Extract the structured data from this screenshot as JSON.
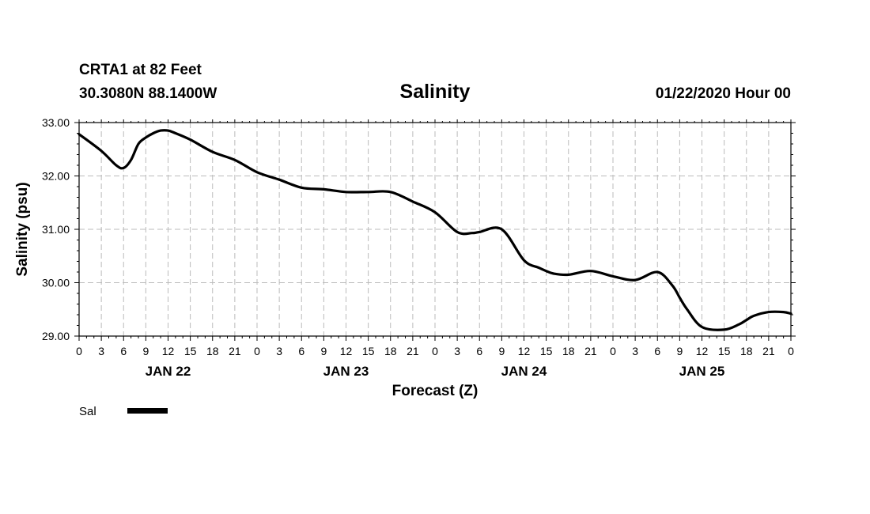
{
  "header": {
    "station": "CRTA1 at 82 Feet",
    "coords": "30.3080N 88.1400W",
    "title": "Salinity",
    "run": "01/22/2020 Hour 00"
  },
  "legend": {
    "label": "Sal"
  },
  "colors": {
    "line": "#000000",
    "grid": "#bbbbbb",
    "axis": "#000000"
  },
  "chart_data": {
    "type": "line",
    "title": "Salinity",
    "xlabel": "Forecast (Z)",
    "ylabel": "Salinity (psu)",
    "xlim": [
      0,
      96
    ],
    "ylim": [
      29,
      33
    ],
    "grid": true,
    "legend_position": "bottom-left",
    "y_ticks": [
      29,
      30,
      31,
      32,
      33
    ],
    "y_tick_labels": [
      "29.00",
      "30.00",
      "31.00",
      "32.00",
      "33.00"
    ],
    "x_ticks": [
      0,
      3,
      6,
      9,
      12,
      15,
      18,
      21,
      24,
      27,
      30,
      33,
      36,
      39,
      42,
      45,
      48,
      51,
      54,
      57,
      60,
      63,
      66,
      69,
      72,
      75,
      78,
      81,
      84,
      87,
      90,
      93,
      96
    ],
    "x_tick_labels": [
      "0",
      "3",
      "6",
      "9",
      "12",
      "15",
      "18",
      "21",
      "0",
      "3",
      "6",
      "9",
      "12",
      "15",
      "18",
      "21",
      "0",
      "3",
      "6",
      "9",
      "12",
      "15",
      "18",
      "21",
      "0",
      "3",
      "6",
      "9",
      "12",
      "15",
      "18",
      "21",
      "0"
    ],
    "date_labels": [
      {
        "label": "JAN 22",
        "hour": 12
      },
      {
        "label": "JAN 23",
        "hour": 36
      },
      {
        "label": "JAN 24",
        "hour": 60
      },
      {
        "label": "JAN 25",
        "hour": 84
      }
    ],
    "series": [
      {
        "name": "Sal",
        "x": [
          0,
          3,
          5,
          6,
          7,
          8,
          9,
          10,
          11,
          12,
          13,
          15,
          18,
          21,
          24,
          27,
          30,
          33,
          36,
          39,
          42,
          45,
          48,
          51,
          53,
          54,
          57,
          60,
          62,
          63,
          64,
          66,
          69,
          72,
          75,
          78,
          80,
          81,
          82,
          84,
          87,
          89,
          90,
          91,
          93,
          95,
          96
        ],
        "y": [
          32.78,
          32.47,
          32.2,
          32.15,
          32.3,
          32.6,
          32.72,
          32.8,
          32.85,
          32.85,
          32.8,
          32.68,
          32.45,
          32.3,
          32.07,
          31.93,
          31.78,
          31.75,
          31.7,
          31.7,
          31.7,
          31.52,
          31.32,
          30.95,
          30.93,
          30.95,
          31.0,
          30.42,
          30.28,
          30.22,
          30.17,
          30.15,
          30.22,
          30.12,
          30.05,
          30.2,
          29.95,
          29.72,
          29.5,
          29.17,
          29.12,
          29.22,
          29.3,
          29.38,
          29.45,
          29.45,
          29.42
        ]
      }
    ]
  }
}
